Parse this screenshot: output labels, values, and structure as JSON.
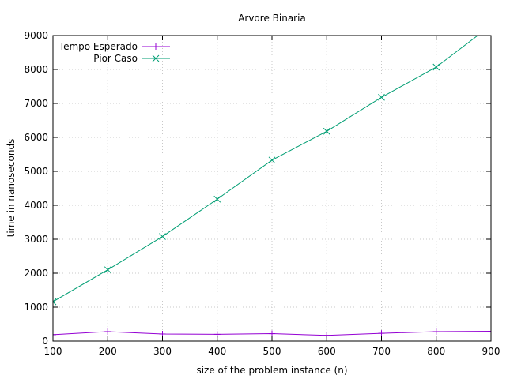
{
  "chart_data": {
    "type": "line",
    "title": "Arvore Binaria",
    "xlabel": "size of the problem instance (n)",
    "ylabel": "time in nanoseconds",
    "xlim": [
      100,
      900
    ],
    "ylim": [
      0,
      9000
    ],
    "xticks": [
      100,
      200,
      300,
      400,
      500,
      600,
      700,
      800,
      900
    ],
    "yticks": [
      0,
      1000,
      2000,
      3000,
      4000,
      5000,
      6000,
      7000,
      8000,
      9000
    ],
    "grid": true,
    "legend_position": "top-left",
    "series": [
      {
        "name": "Tempo Esperado",
        "color": "#9400d3",
        "marker": "plus",
        "x": [
          100,
          200,
          300,
          400,
          500,
          600,
          700,
          800,
          900
        ],
        "y": [
          190,
          280,
          210,
          200,
          220,
          170,
          230,
          280,
          290
        ]
      },
      {
        "name": "Pior Caso",
        "color": "#009e73",
        "marker": "cross",
        "x": [
          100,
          200,
          300,
          400,
          500,
          600,
          700,
          800,
          900
        ],
        "y": [
          1160,
          2100,
          3080,
          4180,
          5330,
          6180,
          7180,
          8070,
          9300
        ]
      }
    ]
  }
}
